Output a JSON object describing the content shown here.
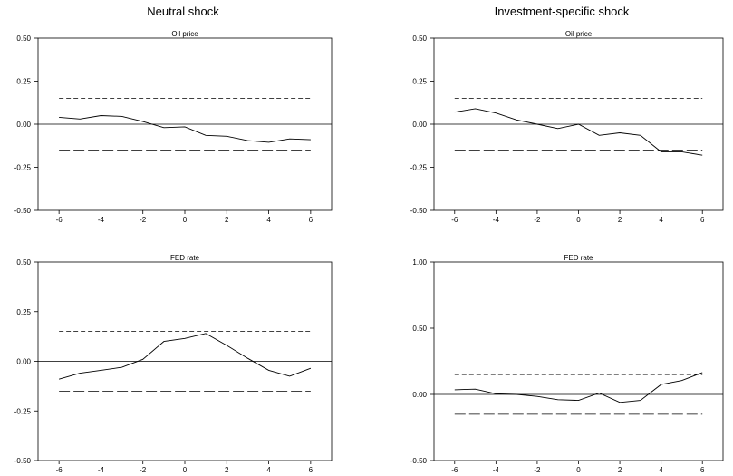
{
  "columns": [
    "Neutral shock",
    "Investment-specific  shock"
  ],
  "chart_data": [
    {
      "type": "line",
      "title": "Oil price",
      "x": [
        -6,
        -5,
        -4,
        -3,
        -2,
        -1,
        0,
        1,
        2,
        3,
        4,
        5,
        6
      ],
      "y": [
        0.04,
        0.03,
        0.05,
        0.045,
        0.015,
        -0.02,
        -0.015,
        -0.065,
        -0.07,
        -0.095,
        -0.105,
        -0.085,
        -0.09
      ],
      "upper_band": 0.15,
      "lower_band": -0.15,
      "xlim": [
        -7,
        7
      ],
      "ylim": [
        -0.5,
        0.5
      ],
      "xticks": [
        -6,
        -4,
        -2,
        0,
        2,
        4,
        6
      ],
      "yticks": [
        -0.5,
        -0.25,
        0,
        0.25,
        0.5
      ],
      "ytick_labels": [
        "-0.50",
        "-0.25",
        "0.00",
        "0.25",
        "0.50"
      ]
    },
    {
      "type": "line",
      "title": "Oil price",
      "x": [
        -6,
        -5,
        -4,
        -3,
        -2,
        -1,
        0,
        1,
        2,
        3,
        4,
        5,
        6
      ],
      "y": [
        0.07,
        0.09,
        0.065,
        0.025,
        0.0,
        -0.025,
        0.0,
        -0.065,
        -0.05,
        -0.065,
        -0.16,
        -0.16,
        -0.18
      ],
      "upper_band": 0.15,
      "lower_band": -0.15,
      "xlim": [
        -7,
        7
      ],
      "ylim": [
        -0.5,
        0.5
      ],
      "xticks": [
        -6,
        -4,
        -2,
        0,
        2,
        4,
        6
      ],
      "yticks": [
        -0.5,
        -0.25,
        0,
        0.25,
        0.5
      ],
      "ytick_labels": [
        "-0.50",
        "-0.25",
        "0.00",
        "0.25",
        "0.50"
      ]
    },
    {
      "type": "line",
      "title": "FED rate",
      "x": [
        -6,
        -5,
        -4,
        -3,
        -2,
        -1,
        0,
        1,
        2,
        3,
        4,
        5,
        6
      ],
      "y": [
        -0.09,
        -0.06,
        -0.045,
        -0.03,
        0.01,
        0.1,
        0.115,
        0.14,
        0.08,
        0.015,
        -0.045,
        -0.075,
        -0.035
      ],
      "upper_band": 0.15,
      "lower_band": -0.15,
      "xlim": [
        -7,
        7
      ],
      "ylim": [
        -0.5,
        0.5
      ],
      "xticks": [
        -6,
        -4,
        -2,
        0,
        2,
        4,
        6
      ],
      "yticks": [
        -0.5,
        -0.25,
        0,
        0.25,
        0.5
      ],
      "ytick_labels": [
        "-0.50",
        "-0.25",
        "0.00",
        "0.25",
        "0.50"
      ]
    },
    {
      "type": "line",
      "title": "FED rate",
      "x": [
        -6,
        -5,
        -4,
        -3,
        -2,
        -1,
        0,
        1,
        2,
        3,
        4,
        5,
        6
      ],
      "y": [
        0.035,
        0.04,
        0.005,
        0.0,
        -0.015,
        -0.04,
        -0.045,
        0.01,
        -0.06,
        -0.045,
        0.075,
        0.105,
        0.165
      ],
      "upper_band": 0.15,
      "lower_band": -0.15,
      "xlim": [
        -7,
        7
      ],
      "ylim": [
        -0.5,
        1.0
      ],
      "xticks": [
        -6,
        -4,
        -2,
        0,
        2,
        4,
        6
      ],
      "yticks": [
        -0.5,
        0,
        0.5,
        1.0
      ],
      "ytick_labels": [
        "-0.50",
        "0.00",
        "0.50",
        "1.00"
      ]
    }
  ]
}
